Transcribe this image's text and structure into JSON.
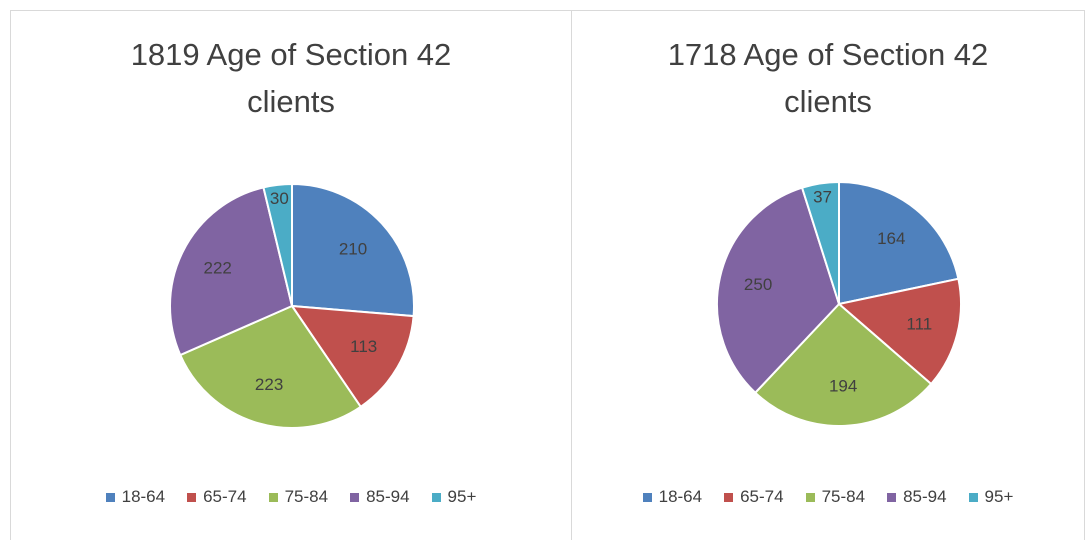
{
  "chart_data": [
    {
      "type": "pie",
      "title": "1819 Age of Section 42 clients",
      "categories": [
        "18-64",
        "65-74",
        "75-84",
        "85-94",
        "95+"
      ],
      "values": [
        210,
        113,
        223,
        222,
        30
      ],
      "colors": [
        "#4f81bd",
        "#c0504d",
        "#9bbb59",
        "#8064a2",
        "#4bacc6"
      ],
      "legend": "bottom"
    },
    {
      "type": "pie",
      "title": "1718 Age of Section 42 clients",
      "categories": [
        "18-64",
        "65-74",
        "75-84",
        "85-94",
        "95+"
      ],
      "values": [
        164,
        111,
        194,
        250,
        37
      ],
      "colors": [
        "#4f81bd",
        "#c0504d",
        "#9bbb59",
        "#8064a2",
        "#4bacc6"
      ],
      "legend": "bottom"
    }
  ]
}
